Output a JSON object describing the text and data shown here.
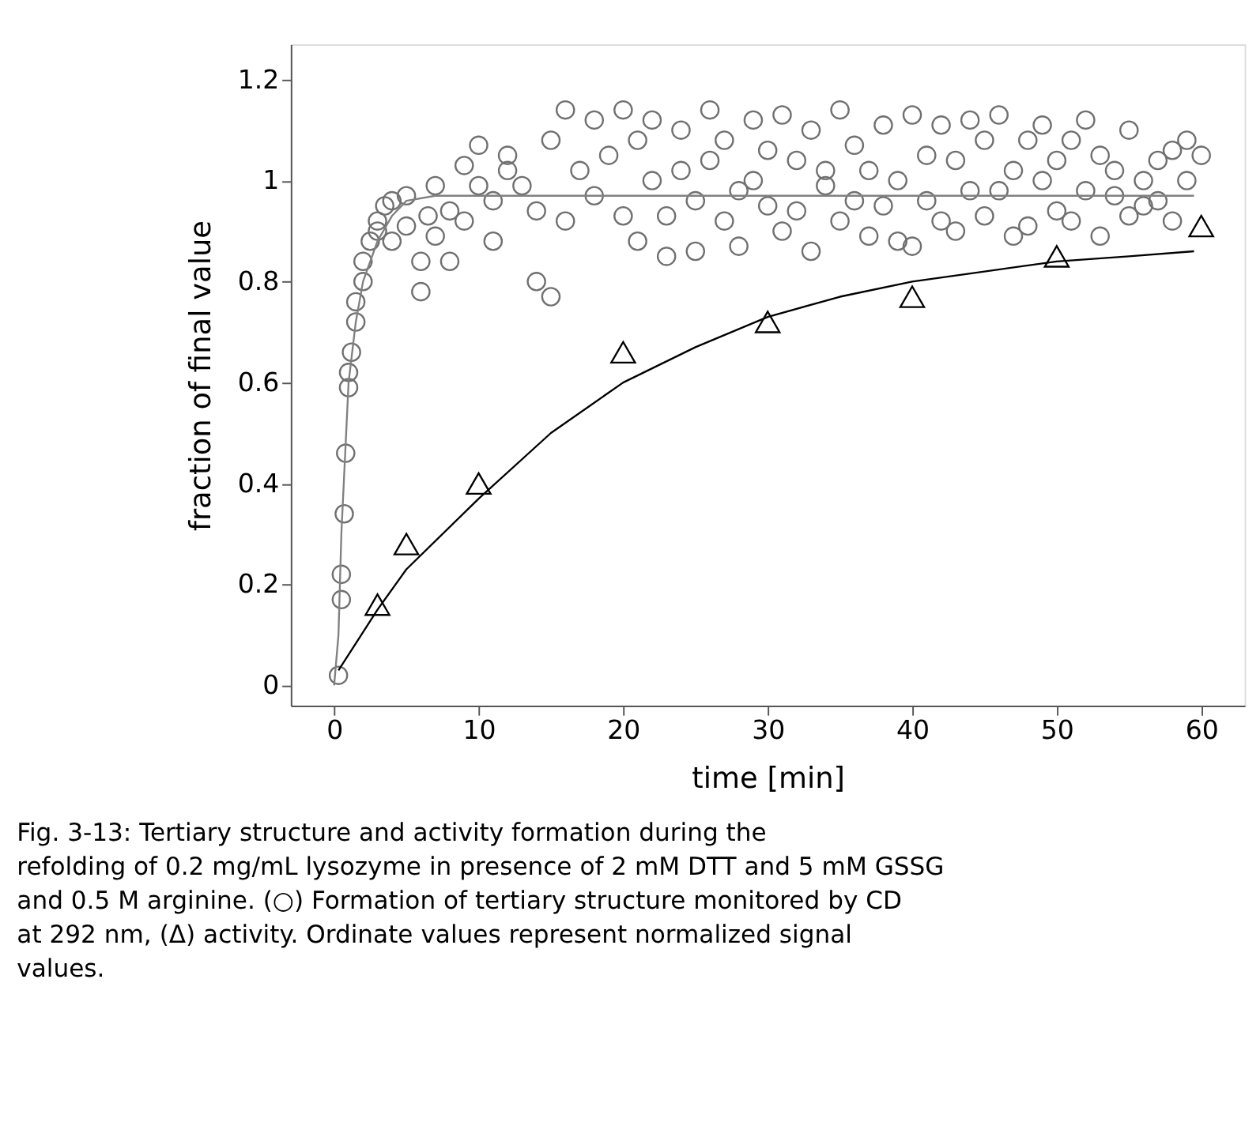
{
  "chart_data": {
    "type": "scatter",
    "xlabel": "time [min]",
    "ylabel": "fraction of final value",
    "xlim": [
      -3,
      63
    ],
    "ylim": [
      -0.04,
      1.27
    ],
    "xticks": [
      0,
      10,
      20,
      30,
      40,
      50,
      60
    ],
    "yticks": [
      0,
      0.2,
      0.4,
      0.6,
      0.8,
      1,
      1.2
    ],
    "grid": false,
    "annotations": [
      "Fig. 3-13: Tertiary structure and activity formation during the refolding of 0.2 mg/mL lysozyme in presence of 2 mM DTT and 5 mM GSSG and 0.5 M arginine. (○) Formation of tertiary structure monitored by CD at 292 nm, (Δ) activity. Ordinate values represent normalized signal values."
    ],
    "series": [
      {
        "marker": "circle",
        "color": "#707070",
        "x": [
          0.3,
          0.5,
          0.5,
          0.7,
          0.8,
          1,
          1,
          1.2,
          1.5,
          1.5,
          2,
          2,
          2.5,
          3,
          3,
          3.5,
          4,
          4,
          5,
          5,
          6,
          6,
          6.5,
          7,
          7,
          8,
          8,
          9,
          9,
          10,
          10,
          11,
          11,
          12,
          12,
          13,
          14,
          14,
          15,
          15,
          16,
          16,
          17,
          18,
          18,
          19,
          20,
          20,
          21,
          21,
          22,
          22,
          23,
          23,
          24,
          24,
          25,
          25,
          26,
          26,
          27,
          27,
          28,
          28,
          29,
          29,
          30,
          30,
          31,
          31,
          32,
          32,
          33,
          33,
          34,
          34,
          35,
          35,
          36,
          36,
          37,
          37,
          38,
          38,
          39,
          39,
          40,
          40,
          41,
          41,
          42,
          42,
          43,
          43,
          44,
          44,
          45,
          45,
          46,
          46,
          47,
          47,
          48,
          48,
          49,
          49,
          50,
          50,
          51,
          51,
          52,
          52,
          53,
          53,
          54,
          54,
          55,
          55,
          56,
          56,
          57,
          57,
          58,
          58,
          59,
          59,
          60
        ],
        "values": [
          0.02,
          0.17,
          0.22,
          0.34,
          0.46,
          0.59,
          0.62,
          0.66,
          0.72,
          0.76,
          0.8,
          0.84,
          0.88,
          0.9,
          0.92,
          0.95,
          0.88,
          0.96,
          0.91,
          0.97,
          0.78,
          0.84,
          0.93,
          0.89,
          0.99,
          0.84,
          0.94,
          1.03,
          0.92,
          1.07,
          0.99,
          0.88,
          0.96,
          1.02,
          1.05,
          0.99,
          0.94,
          0.8,
          0.77,
          1.08,
          1.14,
          0.92,
          1.02,
          0.97,
          1.12,
          1.05,
          1.14,
          0.93,
          0.88,
          1.08,
          1.0,
          1.12,
          0.93,
          0.85,
          1.1,
          1.02,
          0.96,
          0.86,
          1.14,
          1.04,
          0.92,
          1.08,
          0.98,
          0.87,
          1.12,
          1.0,
          0.95,
          1.06,
          0.9,
          1.13,
          1.04,
          0.94,
          0.86,
          1.1,
          0.99,
          1.02,
          1.14,
          0.92,
          1.07,
          0.96,
          0.89,
          1.02,
          1.11,
          0.95,
          1.0,
          0.88,
          1.13,
          0.87,
          1.05,
          0.96,
          0.92,
          1.11,
          1.04,
          0.9,
          0.98,
          1.12,
          1.08,
          0.93,
          0.98,
          1.13,
          1.02,
          0.89,
          0.91,
          1.08,
          1.0,
          1.11,
          0.94,
          1.04,
          0.92,
          1.08,
          0.98,
          1.12,
          0.89,
          1.05,
          0.97,
          1.02,
          1.1,
          0.93,
          1.0,
          0.95,
          1.04,
          0.96,
          1.06,
          0.92,
          1.08,
          1.0,
          1.05
        ]
      },
      {
        "type": "line",
        "marker": "none",
        "color": "#808080",
        "x": [
          0,
          0.3,
          0.5,
          1,
          1.5,
          2,
          3,
          4,
          5,
          7,
          59.5
        ],
        "values": [
          0,
          0.1,
          0.3,
          0.6,
          0.72,
          0.8,
          0.88,
          0.93,
          0.96,
          0.97,
          0.97
        ]
      },
      {
        "type": "line",
        "marker": "none",
        "color": "#000000",
        "x": [
          0.3,
          3,
          5,
          10,
          15,
          20,
          25,
          30,
          35,
          40,
          45,
          50,
          55,
          59.5
        ],
        "values": [
          0.03,
          0.15,
          0.23,
          0.37,
          0.5,
          0.6,
          0.67,
          0.73,
          0.77,
          0.8,
          0.82,
          0.84,
          0.85,
          0.86
        ]
      },
      {
        "marker": "triangle",
        "color": "#000000",
        "x": [
          3,
          5,
          10,
          20,
          30,
          40,
          50,
          60
        ],
        "values": [
          0.16,
          0.28,
          0.4,
          0.66,
          0.72,
          0.77,
          0.85,
          0.91
        ]
      }
    ]
  }
}
